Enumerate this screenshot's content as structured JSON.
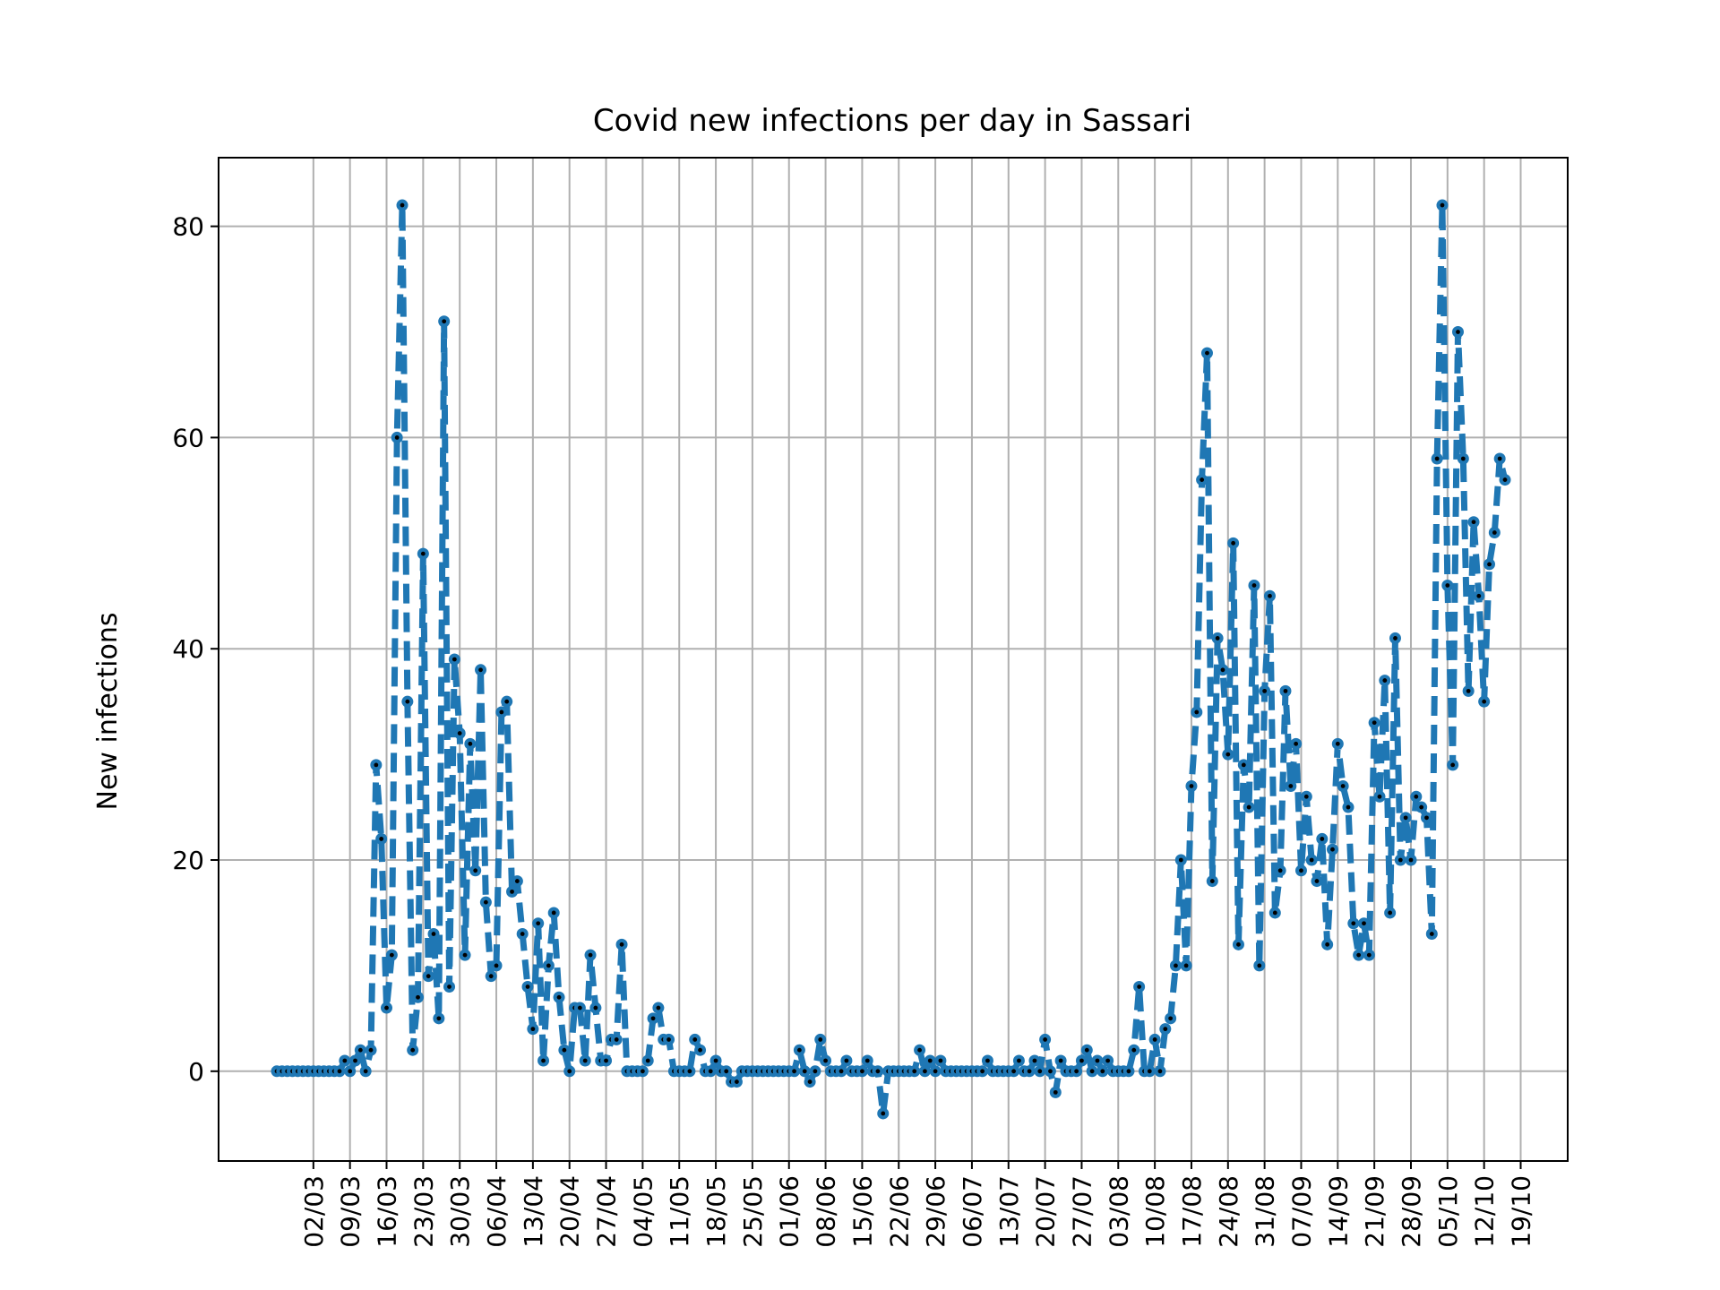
{
  "chart_data": {
    "type": "line",
    "title": "Covid new infections per day in Sassari",
    "ylabel": "New infections",
    "xlabel": "",
    "ylim": [
      -8.5,
      86.5
    ],
    "yticks": [
      0,
      20,
      40,
      60,
      80
    ],
    "xtick_labels": [
      "02/03",
      "09/03",
      "16/03",
      "23/03",
      "30/03",
      "06/04",
      "13/04",
      "20/04",
      "27/04",
      "04/05",
      "11/05",
      "18/05",
      "25/05",
      "01/06",
      "08/06",
      "15/06",
      "22/06",
      "29/06",
      "06/07",
      "13/07",
      "20/07",
      "27/07",
      "03/08",
      "10/08",
      "17/08",
      "24/08",
      "31/08",
      "07/09",
      "14/09",
      "21/09",
      "28/09",
      "05/10",
      "12/10",
      "19/10"
    ],
    "grid": true,
    "series_color": "#1f77b4",
    "marker_color": "#000000",
    "first_date": "24/02",
    "values": [
      0,
      0,
      0,
      0,
      0,
      0,
      0,
      0,
      0,
      0,
      0,
      0,
      0,
      1,
      0,
      1,
      2,
      0,
      2,
      29,
      22,
      6,
      11,
      60,
      82,
      35,
      2,
      7,
      49,
      9,
      13,
      5,
      71,
      8,
      39,
      32,
      11,
      31,
      19,
      38,
      16,
      9,
      10,
      34,
      35,
      17,
      18,
      13,
      8,
      4,
      14,
      1,
      10,
      15,
      7,
      2,
      0,
      6,
      6,
      1,
      11,
      6,
      1,
      1,
      3,
      3,
      12,
      0,
      0,
      0,
      0,
      1,
      5,
      6,
      3,
      3,
      0,
      0,
      0,
      0,
      3,
      2,
      0,
      0,
      1,
      0,
      0,
      -1,
      -1,
      0,
      0,
      0,
      0,
      0,
      0,
      0,
      0,
      0,
      0,
      0,
      2,
      0,
      -1,
      0,
      3,
      1,
      0,
      0,
      0,
      1,
      0,
      0,
      0,
      1,
      0,
      0,
      -4,
      0,
      0,
      0,
      0,
      0,
      0,
      2,
      0,
      1,
      0,
      1,
      0,
      0,
      0,
      0,
      0,
      0,
      0,
      0,
      1,
      0,
      0,
      0,
      0,
      0,
      1,
      0,
      0,
      1,
      0,
      3,
      0,
      -2,
      1,
      0,
      0,
      0,
      1,
      2,
      0,
      1,
      0,
      1,
      0,
      0,
      0,
      0,
      2,
      8,
      0,
      0,
      3,
      0,
      4,
      5,
      10,
      20,
      10,
      27,
      34,
      56,
      68,
      18,
      41,
      38,
      30,
      50,
      12,
      29,
      25,
      46,
      10,
      36,
      45,
      15,
      19,
      36,
      27,
      31,
      19,
      26,
      20,
      18,
      22,
      12,
      21,
      31,
      27,
      25,
      14,
      11,
      14,
      11,
      33,
      26,
      37,
      15,
      41,
      20,
      24,
      20,
      26,
      25,
      24,
      13,
      58,
      82,
      46,
      29,
      70,
      58,
      36,
      52,
      45,
      35,
      48,
      51,
      58,
      56
    ]
  }
}
